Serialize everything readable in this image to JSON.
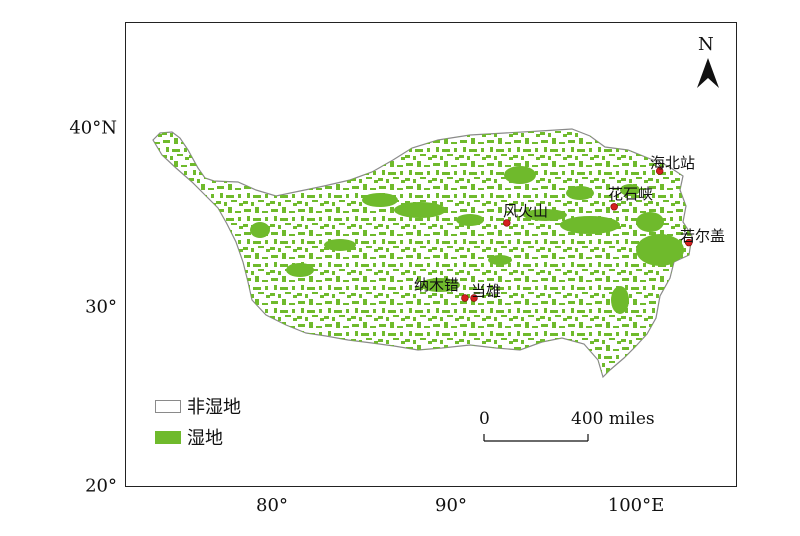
{
  "colors": {
    "wetland": "#6fba2c",
    "non_wetland": "#ffffff",
    "outline": "#8a8a8a",
    "site_marker": "#d42020",
    "frame": "#222222"
  },
  "axes": {
    "y_ticks": [
      {
        "value": 40,
        "label": "40°N"
      },
      {
        "value": 30,
        "label": "30°"
      },
      {
        "value": 20,
        "label": "20°"
      }
    ],
    "x_ticks": [
      {
        "value": 80,
        "label": "80°"
      },
      {
        "value": 90,
        "label": "90°"
      },
      {
        "value": 100,
        "label": "100°E"
      }
    ]
  },
  "north_arrow": {
    "label": "N",
    "icon": "north-arrow-icon"
  },
  "sites": [
    {
      "id": "haibei",
      "name": "海北站",
      "lon": 101.3,
      "lat": 37.6
    },
    {
      "id": "huashixia",
      "name": "花石峡",
      "lon": 98.8,
      "lat": 35.6
    },
    {
      "id": "fenghuoshan",
      "name": "风火山",
      "lon": 92.9,
      "lat": 34.7
    },
    {
      "id": "zoige",
      "name": "若尔盖",
      "lon": 102.9,
      "lat": 33.6
    },
    {
      "id": "namco",
      "name": "纳木错",
      "lon": 90.6,
      "lat": 30.5
    },
    {
      "id": "damxung",
      "name": "当雄",
      "lon": 91.1,
      "lat": 30.5
    }
  ],
  "legend": [
    {
      "key": "non_wetland",
      "label": "非湿地"
    },
    {
      "key": "wetland",
      "label": "湿地"
    }
  ],
  "scale_bar": {
    "start": "0",
    "end": "400 miles"
  }
}
